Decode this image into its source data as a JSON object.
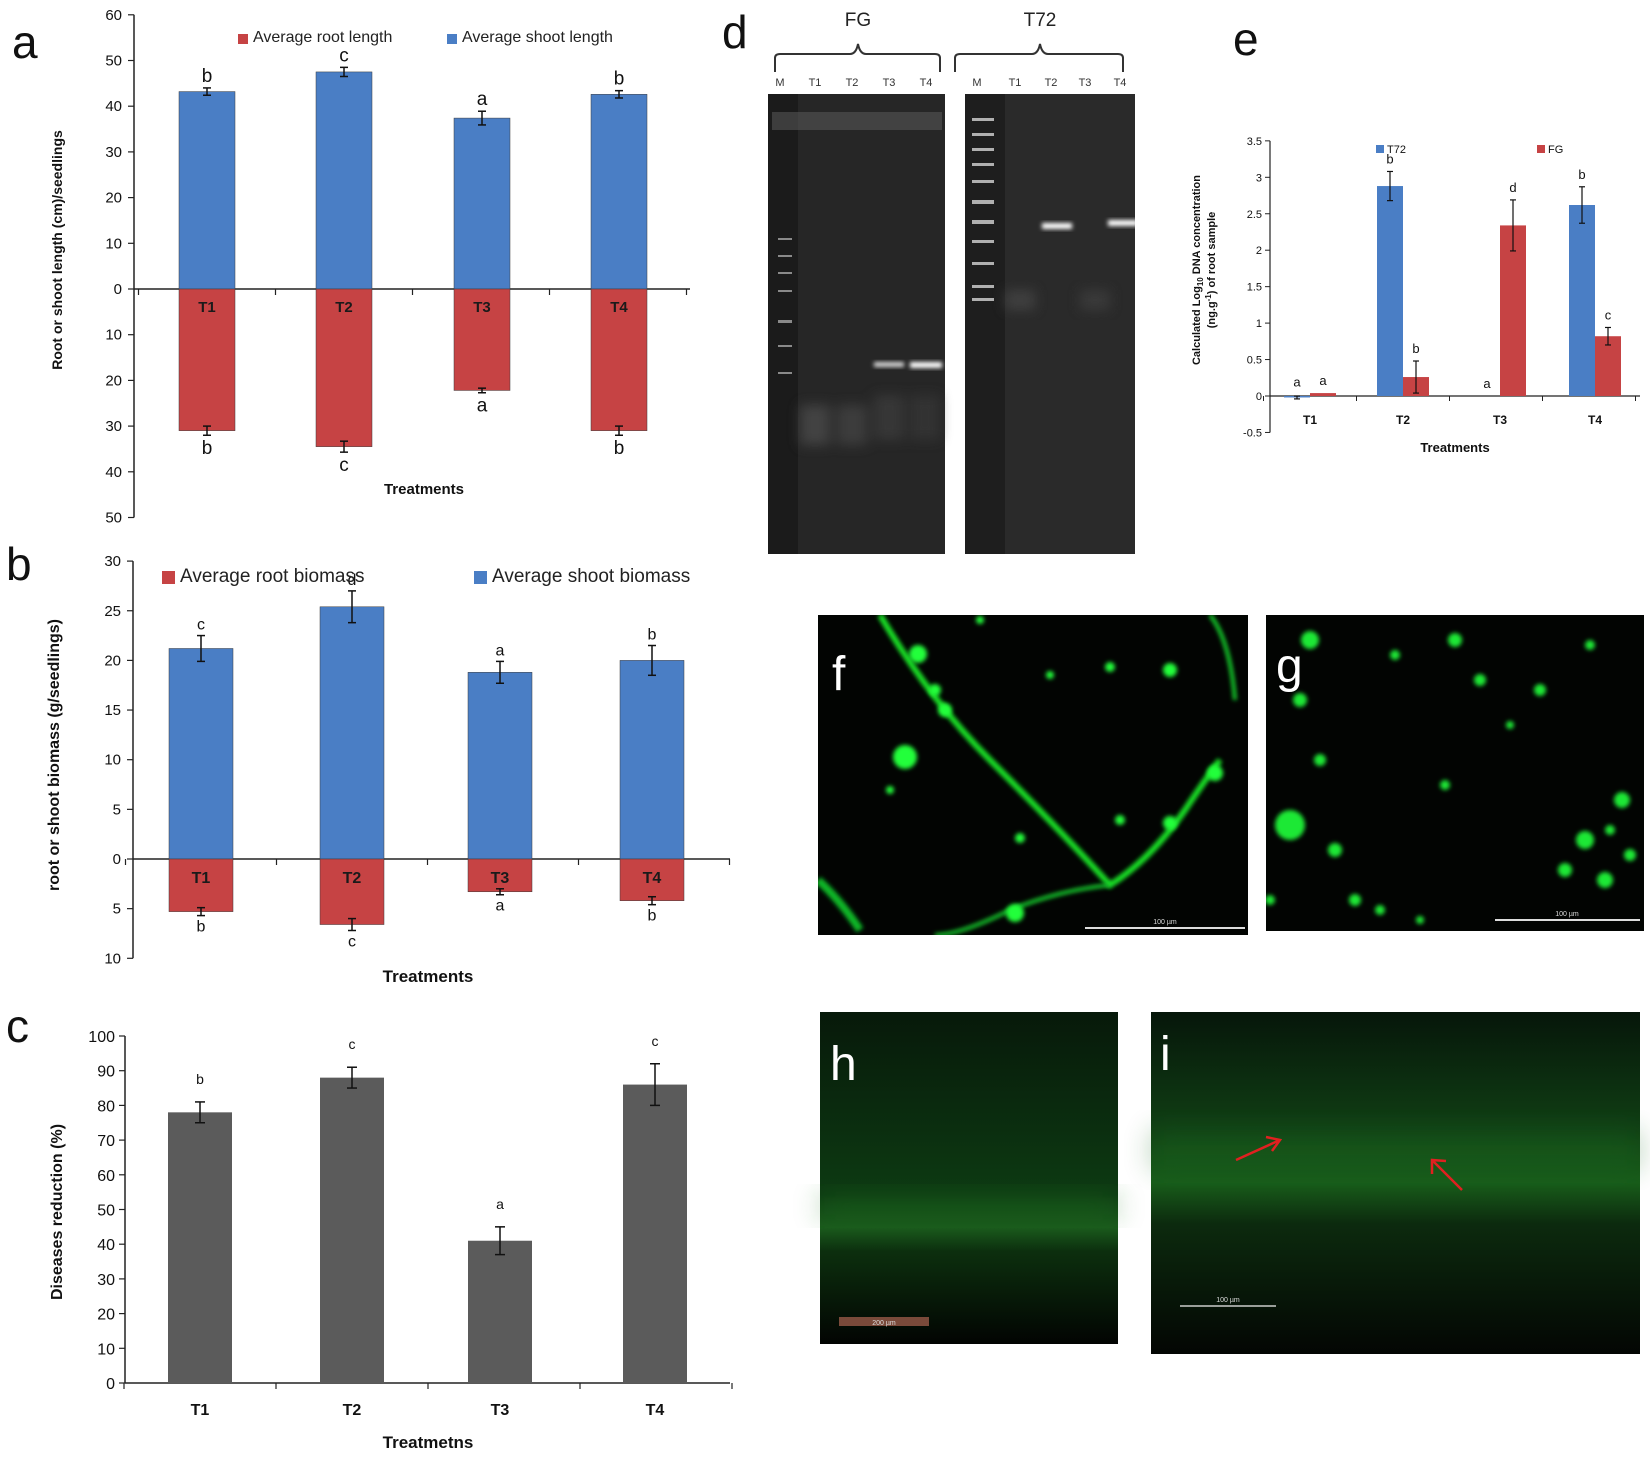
{
  "panel_letters": [
    "a",
    "b",
    "c",
    "d",
    "e",
    "f",
    "g",
    "h",
    "i"
  ],
  "chart_data": [
    {
      "id": "a",
      "type": "bar",
      "ylabel": "Root or shoot length (cm)/seedlings",
      "xlabel": "Treatments",
      "categories": [
        "T1",
        "T2",
        "T3",
        "T4"
      ],
      "yticks_up": [
        0,
        10,
        20,
        30,
        40,
        50,
        60
      ],
      "yticks_down": [
        10,
        20,
        30,
        40,
        50
      ],
      "series": [
        {
          "name": "Average shoot length",
          "direction": "up",
          "values": [
            43.2,
            47.5,
            37.4,
            42.6
          ],
          "errors": [
            0.8,
            1.0,
            1.5,
            0.8
          ],
          "letters": [
            "b",
            "c",
            "a",
            "b"
          ]
        },
        {
          "name": "Average root length",
          "direction": "down",
          "values": [
            31.0,
            34.5,
            22.2,
            31.0
          ],
          "errors": [
            1.0,
            1.2,
            0.5,
            1.0
          ],
          "letters": [
            "b",
            "c",
            "a",
            "b"
          ]
        }
      ],
      "colors": {
        "shoot": "#4a7ec5",
        "root": "#c64344"
      }
    },
    {
      "id": "b",
      "type": "bar",
      "ylabel": "root or shoot biomass (g/seedlings)",
      "xlabel": "Treatments",
      "categories": [
        "T1",
        "T2",
        "T3",
        "T4"
      ],
      "yticks_up": [
        0,
        5,
        10,
        15,
        20,
        25,
        30
      ],
      "yticks_down": [
        5,
        10
      ],
      "series": [
        {
          "name": "Average shoot biomass",
          "direction": "up",
          "values": [
            21.2,
            25.4,
            18.8,
            20.0
          ],
          "errors": [
            1.3,
            1.6,
            1.1,
            1.5
          ],
          "letters": [
            "c",
            "d",
            "a",
            "b"
          ]
        },
        {
          "name": "Average  root biomass",
          "direction": "down",
          "values": [
            5.3,
            6.6,
            3.3,
            4.2
          ],
          "errors": [
            0.4,
            0.6,
            0.3,
            0.4
          ],
          "letters": [
            "b",
            "c",
            "a",
            "b"
          ]
        }
      ],
      "colors": {
        "shoot": "#4a7ec5",
        "root": "#c64344"
      }
    },
    {
      "id": "c",
      "type": "bar",
      "ylabel": "Diseases reduction (%)",
      "xlabel": "Treatmetns",
      "categories": [
        "T1",
        "T2",
        "T3",
        "T4"
      ],
      "yticks": [
        0,
        10,
        20,
        30,
        40,
        50,
        60,
        70,
        80,
        90,
        100
      ],
      "values": [
        78,
        88,
        41,
        86
      ],
      "errors": [
        3,
        3,
        4,
        6
      ],
      "letters": [
        "b",
        "c",
        "a",
        "c"
      ],
      "color": "#5b5b5b"
    },
    {
      "id": "e",
      "type": "bar",
      "ylabel_line1": "Calculated Log",
      "ylabel_sub": "10",
      "ylabel_line1b": " DNA concentration",
      "ylabel_line2": "(ng.g",
      "ylabel_sup": "-1",
      "ylabel_line2b": ") of root sample",
      "xlabel": "Treatments",
      "categories": [
        "T1",
        "T2",
        "T3",
        "T4"
      ],
      "yticks": [
        "-0.5",
        "0",
        "0.5",
        "1",
        "1.5",
        "2",
        "2.5",
        "3",
        "3.5"
      ],
      "ylim": [
        -0.5,
        3.5
      ],
      "series": [
        {
          "name": "T72",
          "values": [
            -0.02,
            2.88,
            0,
            2.62
          ],
          "errors": [
            0.02,
            0.2,
            0,
            0.25
          ],
          "letters": [
            "a",
            "b",
            "a",
            "b"
          ],
          "color": "#4a7ec5"
        },
        {
          "name": "FG",
          "values": [
            0.04,
            0.26,
            2.34,
            0.82
          ],
          "errors": [
            0,
            0.22,
            0.35,
            0.12
          ],
          "letters": [
            "a",
            "b",
            "d",
            "c"
          ],
          "color": "#c64344"
        }
      ]
    }
  ],
  "gel": {
    "groups": [
      "FG",
      "T72"
    ],
    "lanes": [
      "M",
      "T1",
      "T2",
      "T3",
      "T4"
    ]
  },
  "micrographs": {
    "f_scale": "100 µm",
    "g_scale": "100 µm",
    "h_scale": "200 µm",
    "i_scale": "100 µm"
  }
}
